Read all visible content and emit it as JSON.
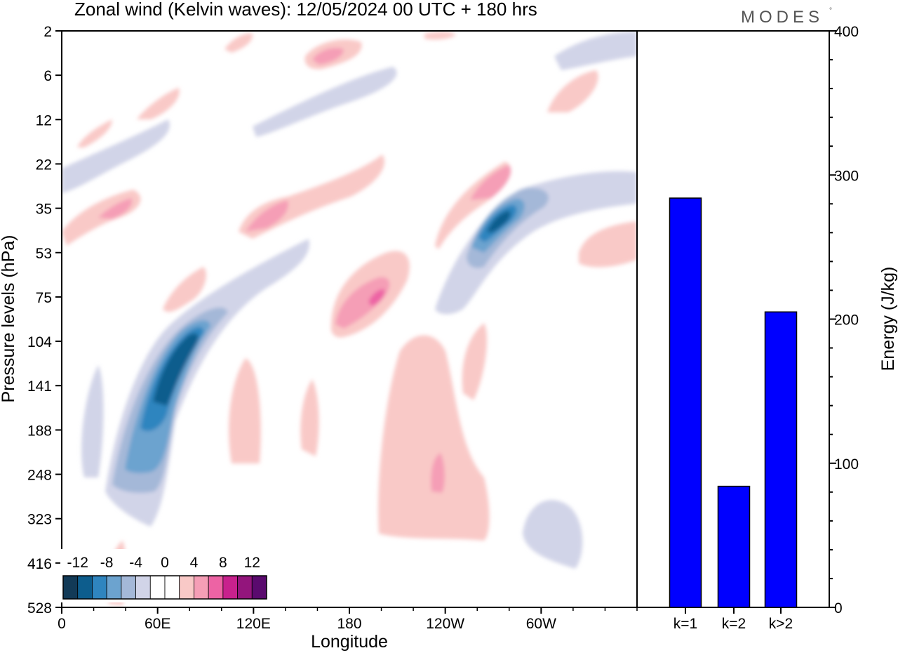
{
  "title": "Zonal wind (Kelvin waves):  12/05/2024  00 UTC  + 180 hrs",
  "brand": "MODES",
  "brand_mark": "°",
  "chart_data": [
    {
      "type": "heatmap",
      "xlabel": "Longitude",
      "ylabel": "Pressure levels (hPa)",
      "x_ticks": [
        "0",
        "60E",
        "120E",
        "180",
        "120W",
        "60W"
      ],
      "x_tick_values": [
        0,
        60,
        120,
        180,
        240,
        300
      ],
      "xlim": [
        0,
        360
      ],
      "y_ticks": [
        "2",
        "6",
        "12",
        "22",
        "35",
        "53",
        "75",
        "104",
        "141",
        "188",
        "248",
        "323",
        "416",
        "528"
      ],
      "y_scale": "pressure levels (top = 2 hPa, bottom = 528 hPa)",
      "colorbar": {
        "labels": [
          "-12",
          "-8",
          "-4",
          "0",
          "4",
          "8",
          "12"
        ],
        "colors": [
          "#123a57",
          "#0d5d8d",
          "#2f85bf",
          "#6ca3cf",
          "#a4b8d8",
          "#d1d4e8",
          "#ffffff",
          "#ffffff",
          "#f9c9c7",
          "#f59eb6",
          "#ed63a4",
          "#c8218d",
          "#93157c",
          "#5a0a6e"
        ]
      },
      "features": [
        {
          "sign": "negative",
          "peak": -12,
          "lon": 62,
          "level": 141
        },
        {
          "sign": "negative",
          "peak": -12,
          "lon": 268,
          "level": 35
        },
        {
          "sign": "positive",
          "peak": 8,
          "lon": 193,
          "level": 75
        },
        {
          "sign": "positive",
          "peak": 8,
          "lon": 33,
          "level": 35
        },
        {
          "sign": "positive",
          "peak": 8,
          "lon": 136,
          "level": 35
        },
        {
          "sign": "positive",
          "peak": 8,
          "lon": 165,
          "level": 6
        }
      ]
    },
    {
      "type": "bar",
      "ylabel": "Energy (J/kg)",
      "categories": [
        "k=1",
        "k=2",
        "k>2"
      ],
      "values": [
        284,
        84,
        205
      ],
      "ylim": [
        0,
        400
      ],
      "y_ticks": [
        "0",
        "100",
        "200",
        "300",
        "400"
      ],
      "bar_color": "#0000ff"
    }
  ]
}
